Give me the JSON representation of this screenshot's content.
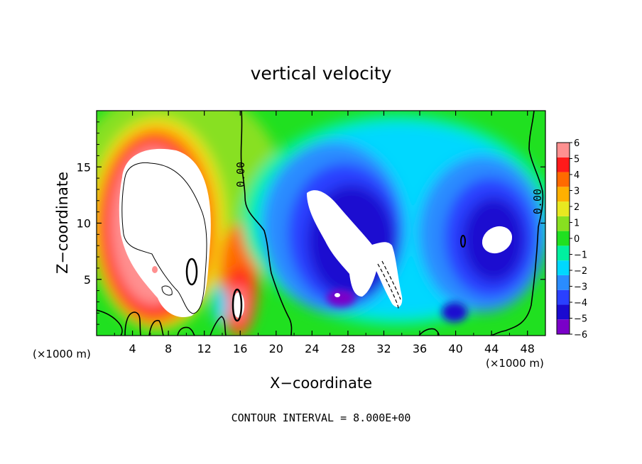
{
  "chart_data": {
    "type": "heatmap",
    "title": "vertical velocity",
    "xlabel": "X−coordinate",
    "ylabel": "Z−coordinate",
    "x_unit_label": "(×1000 m)",
    "y_unit_label": "(×1000 m)",
    "xlim": [
      0,
      50
    ],
    "ylim": [
      0,
      20
    ],
    "x_ticks": [
      4,
      8,
      12,
      16,
      20,
      24,
      28,
      32,
      36,
      40,
      44,
      48
    ],
    "y_ticks": [
      5,
      10,
      15
    ],
    "footer": "CONTOUR INTERVAL = 8.000E+00",
    "contour_labels": [
      "0.00",
      "0.00"
    ],
    "colorbar": {
      "levels": [
        -6,
        -5,
        -4,
        -3,
        -2,
        -1,
        0,
        1,
        2,
        3,
        4,
        5,
        6
      ],
      "colors": [
        "#7a00c8",
        "#1a0ad0",
        "#2a40ff",
        "#2a8cff",
        "#00d8ff",
        "#00f0a0",
        "#20e020",
        "#88e020",
        "#e8e820",
        "#ffb000",
        "#ff6a00",
        "#ff1a1a",
        "#ff9090"
      ]
    },
    "features": [
      {
        "x": 7.5,
        "z": 10,
        "w": 11.0,
        "sign": 1
      },
      {
        "x": 28.5,
        "z": 9,
        "w": -4.8
      },
      {
        "x": 44.0,
        "z": 9,
        "w": -4.8
      }
    ]
  }
}
